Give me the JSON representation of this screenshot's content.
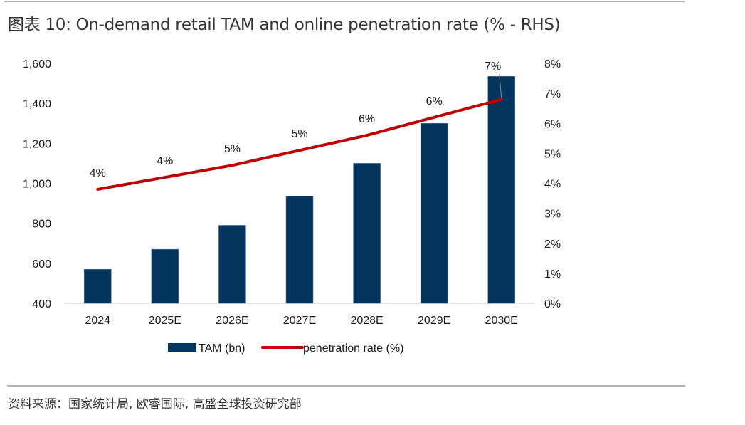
{
  "header": {
    "title": "图表 10: On-demand retail TAM and online penetration rate (% - RHS)"
  },
  "footer": {
    "source": "资料来源：国家统计局, 欧睿国际, 高盛全球投资研究部"
  },
  "colors": {
    "bar": "#03355e",
    "line": "#c00000",
    "axis": "#d9d9d9",
    "rule": "#b3b3b3"
  },
  "chart_data": {
    "type": "bar+line",
    "title": "On-demand retail TAM and online penetration rate (% - RHS)",
    "categories": [
      "2024",
      "2025E",
      "2026E",
      "2027E",
      "2028E",
      "2029E",
      "2030E"
    ],
    "series": [
      {
        "name": "TAM (bn)",
        "type": "bar",
        "axis": "left",
        "values": [
          570,
          670,
          790,
          935,
          1100,
          1300,
          1535
        ]
      },
      {
        "name": "penetration rate (%)",
        "type": "line",
        "axis": "right",
        "values": [
          3.8,
          4.2,
          4.6,
          5.1,
          5.6,
          6.2,
          6.8
        ],
        "data_labels": [
          "4%",
          "4%",
          "5%",
          "5%",
          "6%",
          "6%",
          "7%"
        ]
      }
    ],
    "left_axis": {
      "ylim": [
        400,
        1600
      ],
      "ticks": [
        400,
        600,
        800,
        1000,
        1200,
        1400,
        1600
      ],
      "tick_labels": [
        "400",
        "600",
        "800",
        "1,000",
        "1,200",
        "1,400",
        "1,600"
      ]
    },
    "right_axis": {
      "ylim": [
        0,
        8
      ],
      "ticks": [
        0,
        1,
        2,
        3,
        4,
        5,
        6,
        7,
        8
      ],
      "tick_labels": [
        "0%",
        "1%",
        "2%",
        "3%",
        "4%",
        "5%",
        "6%",
        "7%",
        "8%"
      ]
    },
    "xlabel": "",
    "ylabel": "",
    "grid": false,
    "legend": {
      "position": "bottom",
      "entries": [
        "TAM (bn)",
        "penetration rate (%)"
      ]
    }
  }
}
